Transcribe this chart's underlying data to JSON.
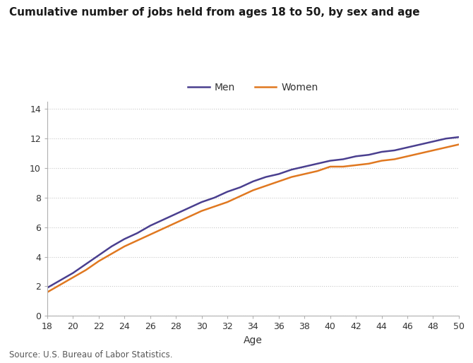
{
  "title": "Cumulative number of jobs held from ages 18 to 50, by sex and age",
  "xlabel": "Age",
  "source": "Source: U.S. Bureau of Labor Statistics.",
  "x_ages": [
    18,
    19,
    20,
    21,
    22,
    23,
    24,
    25,
    26,
    27,
    28,
    29,
    30,
    31,
    32,
    33,
    34,
    35,
    36,
    37,
    38,
    39,
    40,
    41,
    42,
    43,
    44,
    45,
    46,
    47,
    48,
    49,
    50
  ],
  "men_values": [
    1.9,
    2.4,
    2.9,
    3.5,
    4.1,
    4.7,
    5.2,
    5.6,
    6.1,
    6.5,
    6.9,
    7.3,
    7.7,
    8.0,
    8.4,
    8.7,
    9.1,
    9.4,
    9.6,
    9.9,
    10.1,
    10.3,
    10.5,
    10.6,
    10.8,
    10.9,
    11.1,
    11.2,
    11.4,
    11.6,
    11.8,
    12.0,
    12.1
  ],
  "women_values": [
    1.6,
    2.1,
    2.6,
    3.1,
    3.7,
    4.2,
    4.7,
    5.1,
    5.5,
    5.9,
    6.3,
    6.7,
    7.1,
    7.4,
    7.7,
    8.1,
    8.5,
    8.8,
    9.1,
    9.4,
    9.6,
    9.8,
    10.1,
    10.1,
    10.2,
    10.3,
    10.5,
    10.6,
    10.8,
    11.0,
    11.2,
    11.4,
    11.6
  ],
  "men_color": "#4a3f8f",
  "women_color": "#e07820",
  "ylim": [
    0,
    14.5
  ],
  "yticks": [
    0,
    2,
    4,
    6,
    8,
    10,
    12,
    14
  ],
  "xticks": [
    18,
    20,
    22,
    24,
    26,
    28,
    30,
    32,
    34,
    36,
    38,
    40,
    42,
    44,
    46,
    48,
    50
  ],
  "bg_color": "#ffffff",
  "grid_color": "#c8c8c8",
  "line_width": 1.8,
  "title_fontsize": 11,
  "axis_fontsize": 9,
  "legend_fontsize": 10,
  "source_fontsize": 8.5
}
